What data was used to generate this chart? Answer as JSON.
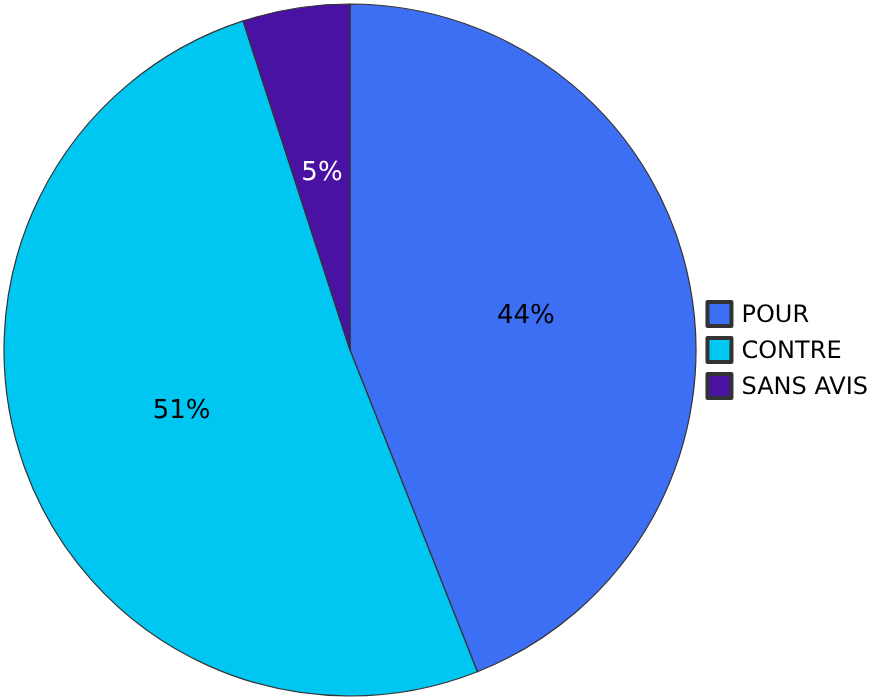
{
  "chart_data": {
    "type": "pie",
    "categories": [
      "POUR",
      "CONTRE",
      "SANS AVIS"
    ],
    "values": [
      44,
      51,
      5
    ],
    "colors": [
      "#3d6ff5",
      "#00c6f2",
      "#4a12a3"
    ],
    "value_labels": [
      "44%",
      "51%",
      "5%"
    ],
    "legend": "right"
  }
}
